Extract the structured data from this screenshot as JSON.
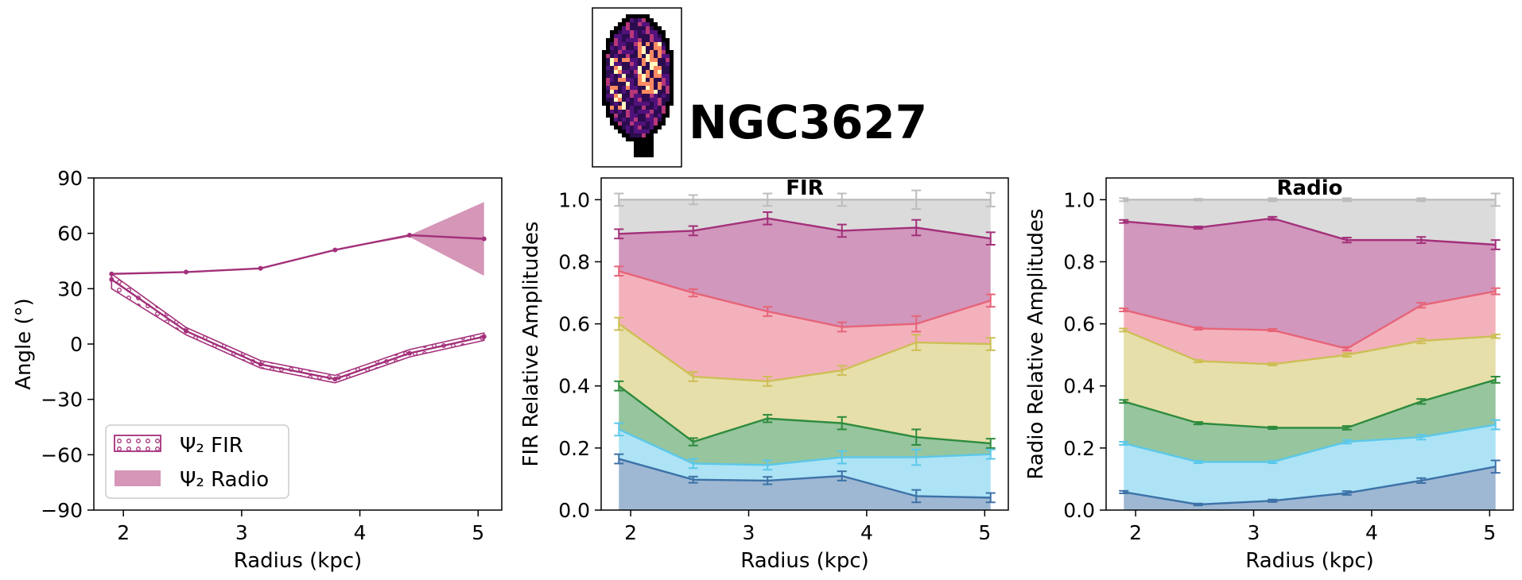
{
  "header": {
    "galaxy_name": "NGC3627"
  },
  "legend": {
    "fir_label": "Ψ₂ FIR",
    "radio_label": "Ψ₂ Radio"
  },
  "colors": {
    "angle_line": "#a3307a",
    "radio_fill": "#d596b8",
    "grey": "#bdbdbd",
    "purple": "#a3307a",
    "pink": "#e76479",
    "yellow": "#cdbf55",
    "green": "#2e8b3d",
    "cyan": "#5bc8ea",
    "blue": "#3d72a8"
  },
  "chart_data": [
    {
      "type": "line",
      "xlabel": "Radius (kpc)",
      "ylabel": "Angle (°)",
      "xlim": [
        1.75,
        5.2
      ],
      "ylim": [
        -90,
        90
      ],
      "xticks": [
        2,
        3,
        4,
        5
      ],
      "yticks": [
        -90,
        -60,
        -30,
        0,
        30,
        60,
        90
      ],
      "legend_position": "lower-left",
      "series": [
        {
          "name": "Ψ₂ FIR",
          "x": [
            1.9,
            2.53,
            3.16,
            3.79,
            4.42,
            5.05
          ],
          "y": [
            35,
            7,
            -11,
            -19,
            -5,
            4
          ],
          "y_lower": [
            30,
            5,
            -13,
            -21,
            -7,
            2
          ],
          "y_upper": [
            38,
            9,
            -9,
            -17,
            -3,
            6
          ]
        },
        {
          "name": "Ψ₂ Radio",
          "x": [
            1.9,
            2.53,
            3.16,
            3.79,
            4.42,
            5.05
          ],
          "y": [
            38,
            39,
            41,
            51,
            59,
            57
          ],
          "y_lower": [
            38,
            39,
            41,
            51,
            58,
            37
          ],
          "y_upper": [
            38,
            39,
            41,
            51,
            59,
            77
          ]
        }
      ]
    },
    {
      "type": "area",
      "title": "FIR",
      "xlabel": "Radius (kpc)",
      "ylabel": "FIR Relative Amplitudes",
      "xlim": [
        1.75,
        5.2
      ],
      "ylim": [
        0,
        1.07
      ],
      "xticks": [
        2,
        3,
        4,
        5
      ],
      "yticks": [
        0.0,
        0.2,
        0.4,
        0.6,
        0.8,
        1.0
      ],
      "x": [
        1.9,
        2.53,
        3.16,
        3.79,
        4.42,
        5.05
      ],
      "series": [
        {
          "color": "grey",
          "values": [
            1.0,
            1.0,
            1.0,
            1.0,
            1.0,
            1.0
          ],
          "err": [
            0.02,
            0.015,
            0.02,
            0.02,
            0.03,
            0.022
          ]
        },
        {
          "color": "purple",
          "values": [
            0.89,
            0.9,
            0.94,
            0.9,
            0.91,
            0.875
          ],
          "err": [
            0.015,
            0.015,
            0.02,
            0.02,
            0.025,
            0.02
          ]
        },
        {
          "color": "pink",
          "values": [
            0.77,
            0.7,
            0.64,
            0.59,
            0.6,
            0.675
          ],
          "err": [
            0.015,
            0.012,
            0.015,
            0.015,
            0.025,
            0.02
          ]
        },
        {
          "color": "yellow",
          "values": [
            0.6,
            0.43,
            0.415,
            0.45,
            0.54,
            0.535
          ],
          "err": [
            0.02,
            0.015,
            0.015,
            0.015,
            0.025,
            0.02
          ]
        },
        {
          "color": "green",
          "values": [
            0.4,
            0.22,
            0.295,
            0.28,
            0.235,
            0.215
          ],
          "err": [
            0.015,
            0.012,
            0.012,
            0.02,
            0.025,
            0.015
          ]
        },
        {
          "color": "cyan",
          "values": [
            0.26,
            0.15,
            0.145,
            0.17,
            0.17,
            0.18
          ],
          "err": [
            0.02,
            0.015,
            0.015,
            0.02,
            0.025,
            0.015
          ]
        },
        {
          "color": "blue",
          "values": [
            0.165,
            0.098,
            0.095,
            0.11,
            0.045,
            0.04
          ],
          "err": [
            0.015,
            0.01,
            0.012,
            0.015,
            0.02,
            0.015
          ]
        }
      ]
    },
    {
      "type": "area",
      "title": "Radio",
      "xlabel": "Radius (kpc)",
      "ylabel": "Radio Relative Amplitudes",
      "xlim": [
        1.75,
        5.2
      ],
      "ylim": [
        0,
        1.07
      ],
      "xticks": [
        2,
        3,
        4,
        5
      ],
      "yticks": [
        0.0,
        0.2,
        0.4,
        0.6,
        0.8,
        1.0
      ],
      "x": [
        1.9,
        2.53,
        3.16,
        3.79,
        4.42,
        5.05
      ],
      "series": [
        {
          "color": "grey",
          "values": [
            1.0,
            1.0,
            1.0,
            1.0,
            1.0,
            1.0
          ],
          "err": [
            0.005,
            0.003,
            0.005,
            0.005,
            0.005,
            0.02
          ]
        },
        {
          "color": "purple",
          "values": [
            0.93,
            0.91,
            0.94,
            0.87,
            0.87,
            0.855
          ],
          "err": [
            0.005,
            0.004,
            0.005,
            0.008,
            0.01,
            0.015
          ]
        },
        {
          "color": "pink",
          "values": [
            0.645,
            0.585,
            0.58,
            0.52,
            0.66,
            0.705
          ],
          "err": [
            0.005,
            0.004,
            0.004,
            0.006,
            0.008,
            0.01
          ]
        },
        {
          "color": "yellow",
          "values": [
            0.58,
            0.48,
            0.47,
            0.5,
            0.545,
            0.56
          ],
          "err": [
            0.005,
            0.004,
            0.004,
            0.006,
            0.008,
            0.006
          ]
        },
        {
          "color": "green",
          "values": [
            0.35,
            0.28,
            0.265,
            0.265,
            0.35,
            0.42
          ],
          "err": [
            0.005,
            0.004,
            0.004,
            0.006,
            0.008,
            0.01
          ]
        },
        {
          "color": "cyan",
          "values": [
            0.215,
            0.155,
            0.155,
            0.22,
            0.235,
            0.275
          ],
          "err": [
            0.005,
            0.004,
            0.004,
            0.006,
            0.008,
            0.015
          ]
        },
        {
          "color": "blue",
          "values": [
            0.058,
            0.018,
            0.03,
            0.055,
            0.095,
            0.14
          ],
          "err": [
            0.004,
            0.003,
            0.004,
            0.006,
            0.008,
            0.02
          ]
        }
      ]
    }
  ]
}
